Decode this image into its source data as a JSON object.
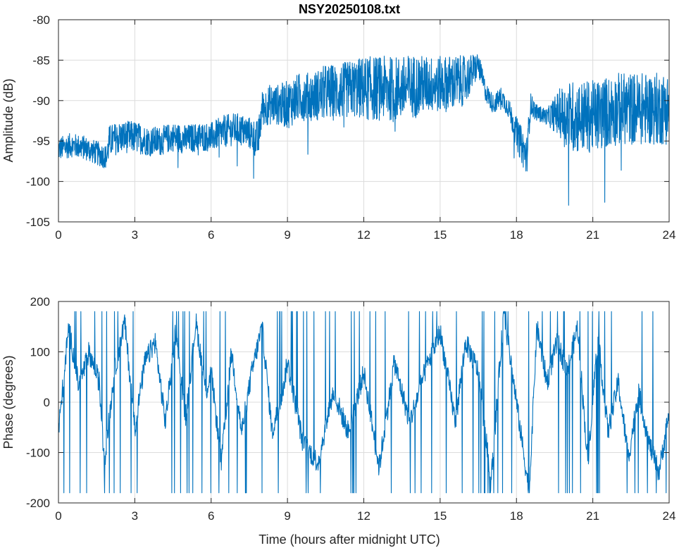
{
  "figure_title": "NSY20250108.txt",
  "chart_data": [
    {
      "type": "line",
      "title": "NSY20250108.txt",
      "xlabel": "",
      "ylabel": "Amplitude (dB)",
      "xlim": [
        0,
        24
      ],
      "ylim": [
        -105,
        -80
      ],
      "xticks": [
        0,
        3,
        6,
        9,
        12,
        15,
        18,
        21,
        24
      ],
      "yticks": [
        -105,
        -100,
        -95,
        -90,
        -85,
        -80
      ],
      "grid": true,
      "color": "#0072BD",
      "series": [
        {
          "x": [
            0,
            0.5,
            1,
            1.5,
            1.9,
            2.0,
            2.5,
            3,
            3.5,
            4,
            4.5,
            5,
            5.5,
            6,
            6.5,
            7,
            7.5,
            7.85,
            8.0,
            8.3,
            8.6,
            9,
            9.5,
            10,
            10.5,
            11,
            11.5,
            12,
            12.5,
            13,
            13.5,
            14,
            14.5,
            15,
            15.5,
            16,
            16.5,
            16.8,
            17.1,
            17.4,
            17.7,
            18.0,
            18.4,
            18.55,
            18.8,
            19.2,
            19.7,
            20.0,
            20.5,
            21,
            21.5,
            22,
            22.5,
            23,
            23.5,
            24
          ],
          "y": [
            -96,
            -95.5,
            -95.8,
            -96.5,
            -97,
            -95,
            -94.5,
            -94.5,
            -95,
            -95,
            -94.5,
            -94.8,
            -94.5,
            -94.5,
            -93.8,
            -93.5,
            -94,
            -95,
            -91,
            -90.5,
            -90.5,
            -90.5,
            -89.5,
            -89.5,
            -89,
            -89,
            -88.5,
            -88.5,
            -88.5,
            -88.5,
            -88.5,
            -88.2,
            -88,
            -88,
            -87.8,
            -87.5,
            -85.5,
            -89,
            -90.5,
            -89.5,
            -91,
            -94,
            -97,
            -90.5,
            -91.5,
            -92,
            -91.5,
            -92,
            -92,
            -92,
            -91.5,
            -91,
            -91,
            -91,
            -91,
            -91
          ],
          "spread": [
            1.5,
            1.5,
            1.5,
            1.5,
            1.5,
            2,
            2,
            2,
            1.8,
            1.8,
            1.8,
            1.8,
            1.8,
            1.8,
            2,
            2,
            2,
            2.5,
            2.2,
            2.5,
            2.5,
            3,
            3,
            3,
            3.5,
            3.5,
            3.5,
            4,
            4,
            4,
            4,
            4,
            3.5,
            3.5,
            3.5,
            3,
            1.5,
            1.2,
            1.2,
            1.2,
            1.2,
            2,
            2.5,
            1.5,
            1,
            1,
            3,
            4.5,
            4.5,
            4.5,
            4.5,
            4.5,
            4.5,
            4.5,
            4.5,
            4.5
          ]
        }
      ]
    },
    {
      "type": "line",
      "title": "",
      "xlabel": "Time (hours after midnight UTC)",
      "ylabel": "Phase (degrees)",
      "xlim": [
        0,
        24
      ],
      "ylim": [
        -200,
        200
      ],
      "xticks": [
        0,
        3,
        6,
        9,
        12,
        15,
        18,
        21,
        24
      ],
      "yticks": [
        -200,
        -100,
        0,
        100,
        200
      ],
      "grid": true,
      "color": "#0072BD",
      "series": [
        {
          "x": [
            0,
            0.4,
            0.8,
            1.2,
            1.6,
            1.8,
            2.2,
            2.6,
            3.0,
            3.4,
            3.8,
            4.2,
            4.6,
            5.0,
            5.4,
            5.8,
            6.0,
            6.4,
            6.8,
            7.2,
            7.6,
            8.0,
            8.4,
            8.8,
            9.0,
            9.6,
            10.2,
            10.8,
            11.4,
            12.0,
            12.6,
            13.2,
            13.8,
            14.4,
            15.0,
            15.6,
            16.0,
            16.5,
            17.0,
            17.5,
            18.0,
            18.5,
            18.8,
            19.2,
            19.6,
            20.0,
            20.4,
            20.8,
            21.2,
            21.6,
            22.0,
            22.4,
            22.8,
            23.2,
            23.6,
            24.0
          ],
          "y": [
            -60,
            150,
            30,
            100,
            40,
            -120,
            60,
            160,
            -50,
            80,
            120,
            -40,
            140,
            -30,
            160,
            20,
            60,
            -120,
            100,
            -60,
            60,
            150,
            -60,
            20,
            80,
            -80,
            -120,
            20,
            -60,
            60,
            -130,
            80,
            -40,
            60,
            140,
            -40,
            120,
            60,
            -160,
            180,
            0,
            -180,
            150,
            40,
            120,
            60,
            150,
            -120,
            130,
            -60,
            40,
            -110,
            20,
            -80,
            -140,
            -20
          ]
        }
      ]
    }
  ]
}
